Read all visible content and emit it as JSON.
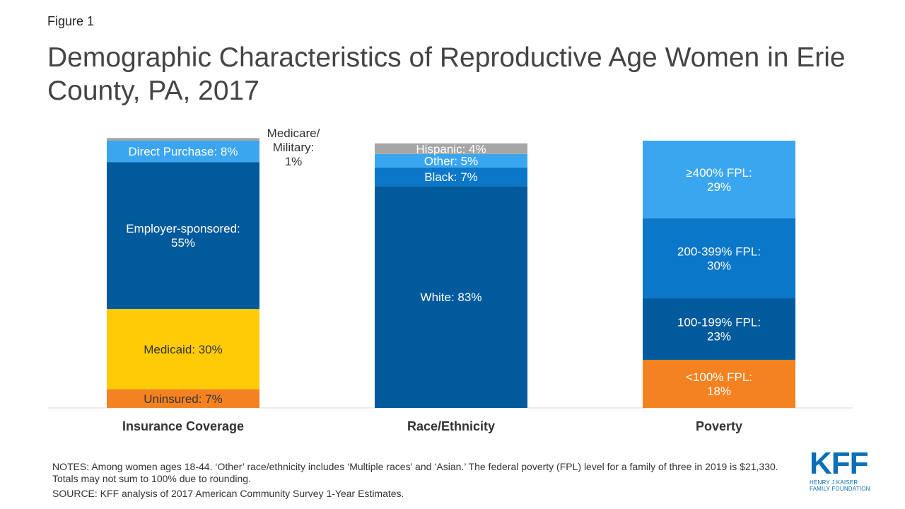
{
  "figure_label": "Figure 1",
  "title": "Demographic Characteristics of Reproductive Age Women in Erie County, PA, 2017",
  "notes": "NOTES: Among women ages 18-44. ‘Other’ race/ethnicity includes ‘Multiple races’ and ‘Asian.’ The federal poverty (FPL) level for a family of three in 2019 is $21,330. Totals may not sum to 100% due to rounding.",
  "source": "SOURCE: KFF analysis of 2017 American Community Survey 1-Year Estimates.",
  "logo": {
    "mark": "KFF",
    "line1": "HENRY J KAISER",
    "line2": "FAMILY FOUNDATION"
  },
  "chart_data": {
    "type": "bar",
    "stacked": true,
    "categories": [
      "Insurance Coverage",
      "Race/Ethnicity",
      "Poverty"
    ],
    "stacks": [
      {
        "category": "Insurance Coverage",
        "segments": [
          {
            "label": [
              "Uninsured: 7%"
            ],
            "value": 7,
            "color": "#f58220",
            "text_color": "#333333"
          },
          {
            "label": [
              "Medicaid: 30%"
            ],
            "value": 30,
            "color": "#ffcb05",
            "text_color": "#333333"
          },
          {
            "label": [
              "Employer-sponsored:",
              "55%"
            ],
            "value": 55,
            "color": "#005a9c",
            "text_color": "#ffffff"
          },
          {
            "label": [
              "Direct Purchase: 8%"
            ],
            "value": 8,
            "color": "#3ba6f0",
            "text_color": "#ffffff"
          },
          {
            "label": [
              "Medicare/",
              "Military:",
              "1%"
            ],
            "value": 1,
            "color": "#a6a6a6",
            "text_color": "#333333",
            "label_outside": true
          }
        ]
      },
      {
        "category": "Race/Ethnicity",
        "segments": [
          {
            "label": [
              "White: 83%"
            ],
            "value": 83,
            "color": "#005a9c",
            "text_color": "#ffffff"
          },
          {
            "label": [
              "Black: 7%"
            ],
            "value": 7,
            "color": "#0b77c9",
            "text_color": "#ffffff"
          },
          {
            "label": [
              "Other: 5%"
            ],
            "value": 5,
            "color": "#3ba6f0",
            "text_color": "#ffffff"
          },
          {
            "label": [
              "Hispanic: 4%"
            ],
            "value": 4,
            "color": "#a6a6a6",
            "text_color": "#ffffff"
          }
        ]
      },
      {
        "category": "Poverty",
        "segments": [
          {
            "label": [
              "<100% FPL:",
              "18%"
            ],
            "value": 18,
            "color": "#f58220",
            "text_color": "#ffffff"
          },
          {
            "label": [
              "100-199% FPL:",
              "23%"
            ],
            "value": 23,
            "color": "#005a9c",
            "text_color": "#ffffff"
          },
          {
            "label": [
              "200-399% FPL:",
              "30%"
            ],
            "value": 30,
            "color": "#0b77c9",
            "text_color": "#ffffff"
          },
          {
            "label": [
              "≥400% FPL:",
              "29%"
            ],
            "value": 29,
            "color": "#3ba6f0",
            "text_color": "#ffffff"
          }
        ]
      }
    ],
    "ylim": [
      0,
      100
    ],
    "grid": false,
    "legend": "none"
  }
}
